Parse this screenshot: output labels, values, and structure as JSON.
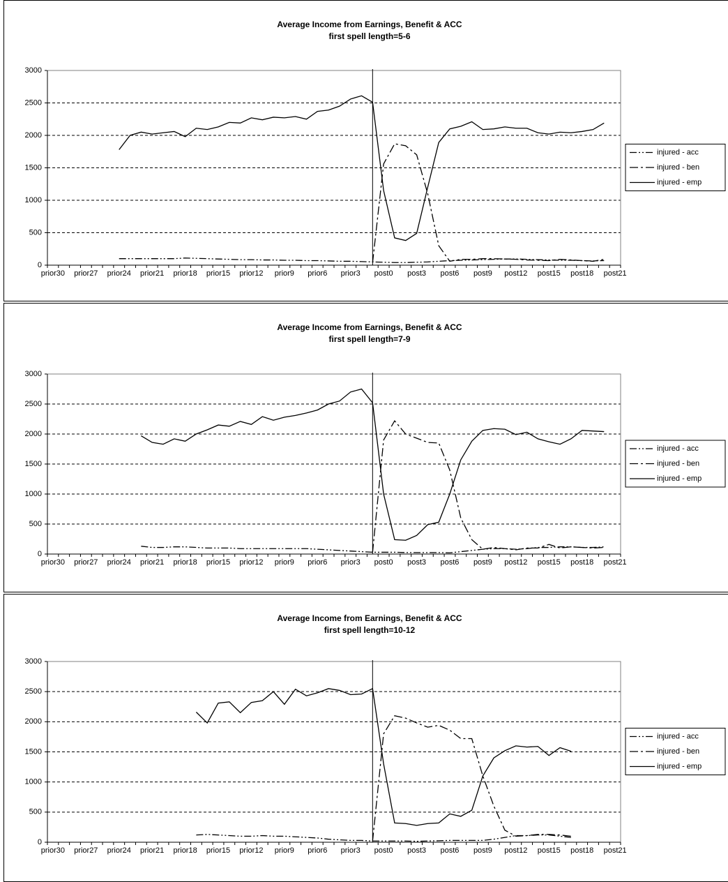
{
  "chart_data": [
    {
      "type": "line",
      "title": "Average Income from Earnings, Benefit & ACC",
      "subtitle": "first spell length=5-6",
      "categories": [
        "prior30",
        null,
        null,
        "prior27",
        null,
        null,
        "prior24",
        null,
        null,
        "prior21",
        null,
        null,
        "prior18",
        null,
        null,
        "prior15",
        null,
        null,
        "prior12",
        null,
        null,
        "prior9",
        null,
        null,
        "prior6",
        null,
        null,
        "prior3",
        null,
        null,
        "post0",
        null,
        null,
        "post3",
        null,
        null,
        "post6",
        null,
        null,
        "post9",
        null,
        null,
        "post12",
        null,
        null,
        "post15",
        null,
        null,
        "post18",
        null,
        null,
        "post21"
      ],
      "ylim": [
        0,
        3000
      ],
      "yticks": [
        0,
        500,
        1000,
        1500,
        2000,
        2500,
        3000
      ],
      "grid": true,
      "legend": "right",
      "vline_index": 29,
      "series": [
        {
          "name": "injured - acc",
          "color": "#000000",
          "style": "dash-dot-dot",
          "values": [
            null,
            null,
            null,
            null,
            null,
            null,
            100,
            100,
            100,
            100,
            100,
            100,
            110,
            105,
            100,
            95,
            90,
            85,
            85,
            80,
            80,
            75,
            75,
            70,
            70,
            65,
            60,
            60,
            55,
            50,
            45,
            40,
            40,
            45,
            50,
            60,
            70,
            75,
            80,
            85,
            90,
            95,
            95,
            90,
            85,
            80,
            75,
            75,
            70,
            65,
            70,
            null
          ]
        },
        {
          "name": "injured - ben",
          "color": "#000000",
          "style": "dash-dot",
          "values": [
            null,
            null,
            null,
            null,
            null,
            null,
            null,
            null,
            null,
            null,
            null,
            null,
            null,
            null,
            null,
            null,
            null,
            null,
            null,
            null,
            null,
            null,
            null,
            null,
            null,
            null,
            null,
            null,
            null,
            40,
            1560,
            1870,
            1840,
            1700,
            1100,
            300,
            60,
            90,
            90,
            100,
            100,
            95,
            90,
            80,
            75,
            70,
            90,
            80,
            70,
            60,
            90,
            null
          ]
        },
        {
          "name": "injured - emp",
          "color": "#000000",
          "style": "solid",
          "values": [
            null,
            null,
            null,
            null,
            null,
            null,
            1780,
            2000,
            2050,
            2020,
            2040,
            2060,
            1980,
            2110,
            2090,
            2130,
            2200,
            2190,
            2270,
            2240,
            2280,
            2270,
            2290,
            2250,
            2370,
            2390,
            2450,
            2560,
            2610,
            2510,
            1150,
            420,
            380,
            490,
            1200,
            1890,
            2100,
            2140,
            2210,
            2090,
            2100,
            2130,
            2110,
            2110,
            2040,
            2020,
            2050,
            2040,
            2060,
            2090,
            2190,
            null
          ]
        }
      ]
    },
    {
      "type": "line",
      "title": "Average Income from Earnings, Benefit & ACC",
      "subtitle": "first spell length=7-9",
      "categories": [
        "prior30",
        null,
        null,
        "prior27",
        null,
        null,
        "prior24",
        null,
        null,
        "prior21",
        null,
        null,
        "prior18",
        null,
        null,
        "prior15",
        null,
        null,
        "prior12",
        null,
        null,
        "prior9",
        null,
        null,
        "prior6",
        null,
        null,
        "prior3",
        null,
        null,
        "post0",
        null,
        null,
        "post3",
        null,
        null,
        "post6",
        null,
        null,
        "post9",
        null,
        null,
        "post12",
        null,
        null,
        "post15",
        null,
        null,
        "post18",
        null,
        null,
        "post21"
      ],
      "ylim": [
        0,
        3000
      ],
      "yticks": [
        0,
        500,
        1000,
        1500,
        2000,
        2500,
        3000
      ],
      "grid": true,
      "legend": "right",
      "vline_index": 29,
      "series": [
        {
          "name": "injured - acc",
          "color": "#000000",
          "style": "dash-dot-dot",
          "values": [
            null,
            null,
            null,
            null,
            null,
            null,
            null,
            null,
            130,
            110,
            110,
            120,
            120,
            110,
            100,
            100,
            100,
            90,
            90,
            90,
            90,
            90,
            90,
            90,
            80,
            70,
            60,
            50,
            40,
            30,
            30,
            30,
            25,
            25,
            25,
            25,
            20,
            40,
            60,
            80,
            90,
            90,
            80,
            90,
            110,
            110,
            120,
            120,
            110,
            110,
            120,
            null
          ]
        },
        {
          "name": "injured - ben",
          "color": "#000000",
          "style": "dash-dot",
          "values": [
            null,
            null,
            null,
            null,
            null,
            null,
            null,
            null,
            null,
            null,
            null,
            null,
            null,
            null,
            null,
            null,
            null,
            null,
            null,
            null,
            null,
            null,
            null,
            null,
            null,
            null,
            null,
            null,
            null,
            30,
            1900,
            2220,
            2000,
            1930,
            1860,
            1850,
            1400,
            600,
            240,
            80,
            110,
            90,
            70,
            100,
            100,
            160,
            100,
            120,
            110,
            100,
            110,
            null
          ]
        },
        {
          "name": "injured - emp",
          "color": "#000000",
          "style": "solid",
          "values": [
            null,
            null,
            null,
            null,
            null,
            null,
            null,
            null,
            1970,
            1860,
            1830,
            1920,
            1880,
            2000,
            2070,
            2150,
            2130,
            2210,
            2160,
            2290,
            2230,
            2280,
            2310,
            2350,
            2400,
            2500,
            2550,
            2700,
            2750,
            2520,
            1000,
            240,
            230,
            310,
            490,
            530,
            1000,
            1570,
            1880,
            2060,
            2090,
            2080,
            1990,
            2030,
            1920,
            1870,
            1830,
            1920,
            2060,
            2050,
            2040,
            null
          ]
        }
      ]
    },
    {
      "type": "line",
      "title": "Average Income from Earnings, Benefit & ACC",
      "subtitle": "first spell length=10-12",
      "categories": [
        "prior30",
        null,
        null,
        "prior27",
        null,
        null,
        "prior24",
        null,
        null,
        "prior21",
        null,
        null,
        "prior18",
        null,
        null,
        "prior15",
        null,
        null,
        "prior12",
        null,
        null,
        "prior9",
        null,
        null,
        "prior6",
        null,
        null,
        "prior3",
        null,
        null,
        "post0",
        null,
        null,
        "post3",
        null,
        null,
        "post6",
        null,
        null,
        "post9",
        null,
        null,
        "post12",
        null,
        null,
        "post15",
        null,
        null,
        "post18",
        null,
        null,
        "post21"
      ],
      "ylim": [
        0,
        3000
      ],
      "yticks": [
        0,
        500,
        1000,
        1500,
        2000,
        2500,
        3000
      ],
      "grid": true,
      "legend": "right",
      "vline_index": 29,
      "series": [
        {
          "name": "injured - acc",
          "color": "#000000",
          "style": "dash-dot-dot",
          "values": [
            null,
            null,
            null,
            null,
            null,
            null,
            null,
            null,
            null,
            null,
            null,
            null,
            null,
            120,
            130,
            120,
            110,
            100,
            100,
            110,
            100,
            100,
            90,
            80,
            70,
            50,
            40,
            30,
            30,
            20,
            20,
            20,
            20,
            15,
            20,
            25,
            30,
            30,
            30,
            30,
            50,
            80,
            110,
            110,
            120,
            120,
            100,
            80,
            null,
            null,
            null,
            null
          ]
        },
        {
          "name": "injured - ben",
          "color": "#000000",
          "style": "dash-dot",
          "values": [
            null,
            null,
            null,
            null,
            null,
            null,
            null,
            null,
            null,
            null,
            null,
            null,
            null,
            null,
            null,
            null,
            null,
            null,
            null,
            null,
            null,
            null,
            null,
            null,
            null,
            null,
            null,
            null,
            null,
            20,
            1800,
            2100,
            2060,
            1980,
            1910,
            1940,
            1860,
            1720,
            1720,
            1100,
            600,
            200,
            100,
            110,
            130,
            130,
            120,
            100,
            null,
            null,
            null,
            null
          ]
        },
        {
          "name": "injured - emp",
          "color": "#000000",
          "style": "solid",
          "values": [
            null,
            null,
            null,
            null,
            null,
            null,
            null,
            null,
            null,
            null,
            null,
            null,
            null,
            2160,
            1980,
            2310,
            2330,
            2150,
            2320,
            2350,
            2500,
            2290,
            2540,
            2430,
            2480,
            2550,
            2520,
            2450,
            2460,
            2550,
            1300,
            320,
            310,
            280,
            310,
            320,
            470,
            430,
            530,
            1100,
            1400,
            1520,
            1600,
            1580,
            1590,
            1440,
            1570,
            1510,
            null,
            null,
            null,
            null
          ]
        }
      ]
    }
  ]
}
